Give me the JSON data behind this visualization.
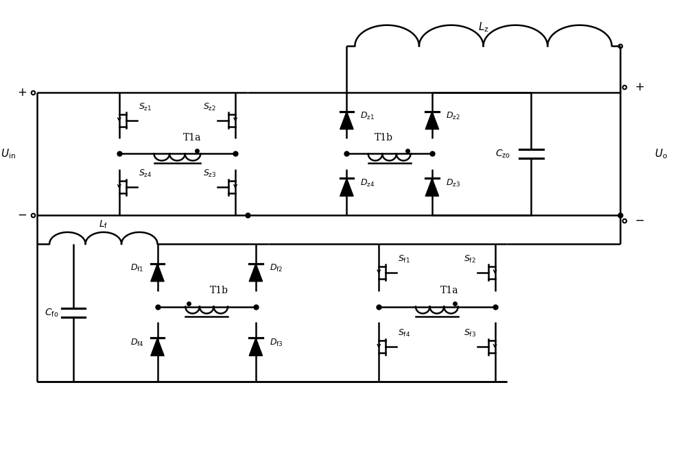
{
  "background": "#ffffff",
  "lw": 1.8,
  "fig_width": 10.0,
  "fig_height": 6.86,
  "xlim": [
    0,
    10
  ],
  "ylim": [
    0,
    6.86
  ]
}
